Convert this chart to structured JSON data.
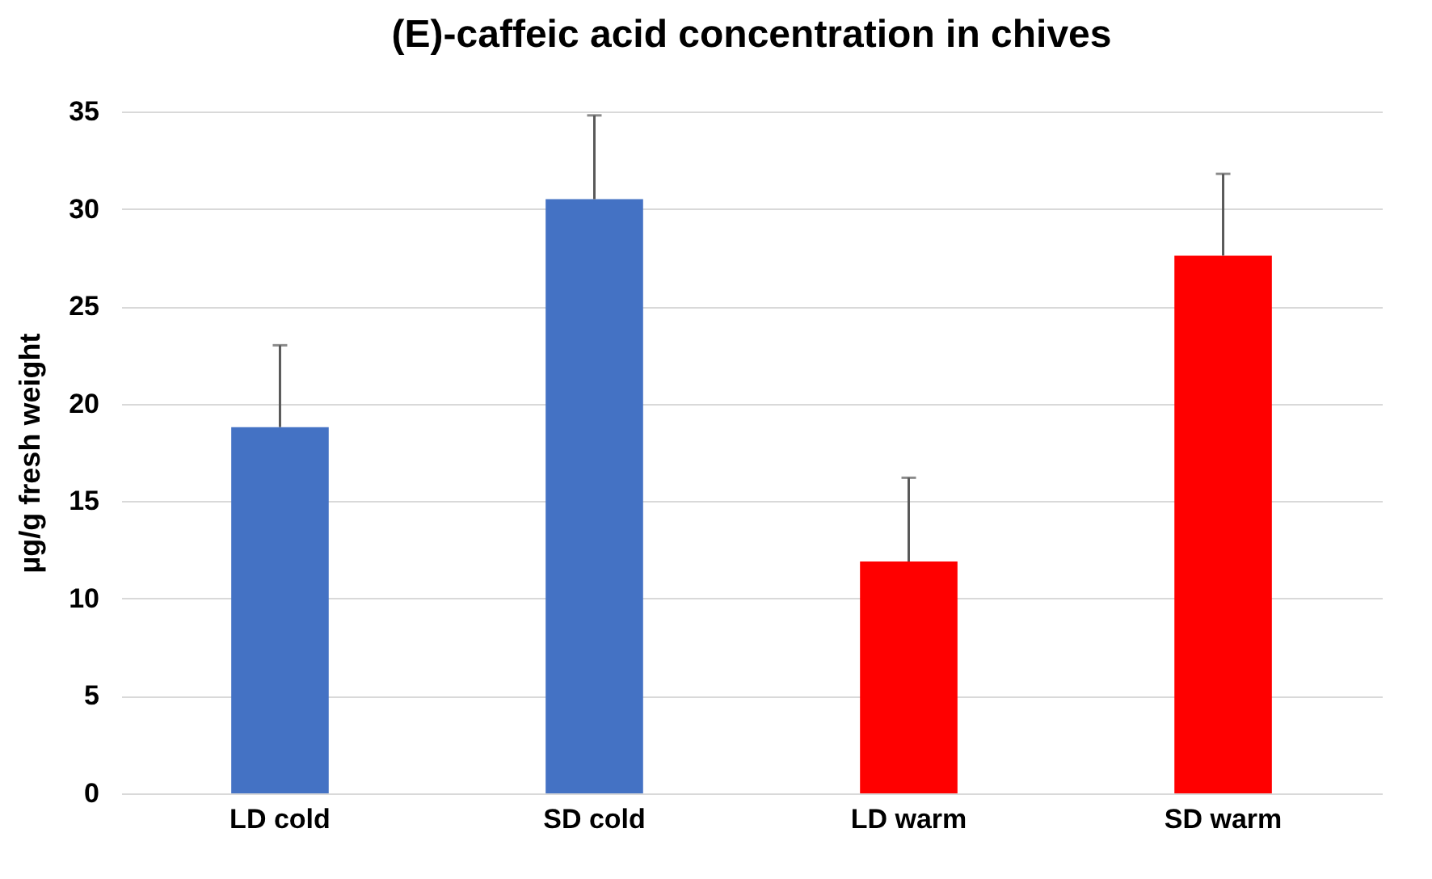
{
  "chart_data": {
    "type": "bar",
    "title": "(E)-caffeic acid concentration in chives",
    "ylabel": "µg/g fresh weight",
    "categories": [
      "LD cold",
      "SD cold",
      "LD warm",
      "SD warm"
    ],
    "values": [
      18.8,
      30.5,
      11.9,
      27.6
    ],
    "colors": [
      "#4472c4",
      "#4472c4",
      "#ff0000",
      "#ff0000"
    ],
    "errors": [
      [
        18.8,
        23.0
      ],
      [
        30.5,
        34.8
      ],
      [
        11.9,
        16.2
      ],
      [
        27.6,
        31.8
      ]
    ],
    "ylim": [
      0,
      35
    ],
    "yticks": [
      0,
      5,
      10,
      15,
      20,
      25,
      30,
      35
    ],
    "grid": "y"
  }
}
